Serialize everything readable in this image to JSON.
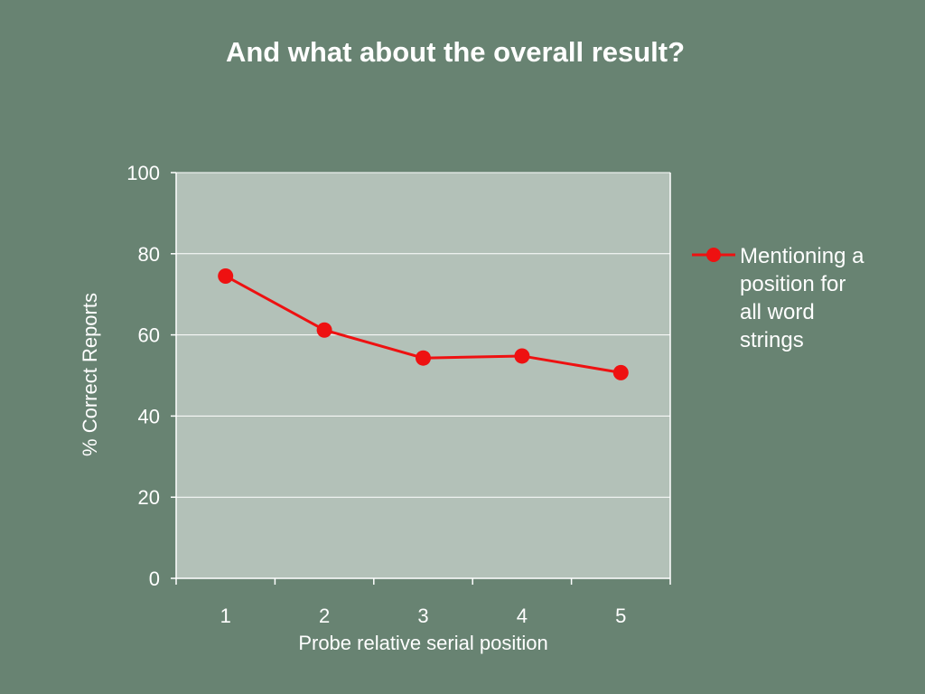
{
  "chart_data": {
    "type": "line",
    "title": "And what about the overall result?",
    "xlabel": "Probe relative serial position",
    "ylabel": "% Correct Reports",
    "categories": [
      "1",
      "2",
      "3",
      "4",
      "5"
    ],
    "yticks": [
      "0",
      "20",
      "40",
      "60",
      "80",
      "100"
    ],
    "ylim": [
      0,
      100
    ],
    "grid": true,
    "legend_position": "right",
    "series": [
      {
        "name": "Mentioning a position for all word strings",
        "values": [
          74.5,
          61.2,
          54.3,
          54.8,
          50.7
        ]
      }
    ],
    "colors": {
      "background": "#688372",
      "plot_area": "#b3c1b8",
      "series": "#ee1111",
      "text": "#ffffff"
    }
  }
}
